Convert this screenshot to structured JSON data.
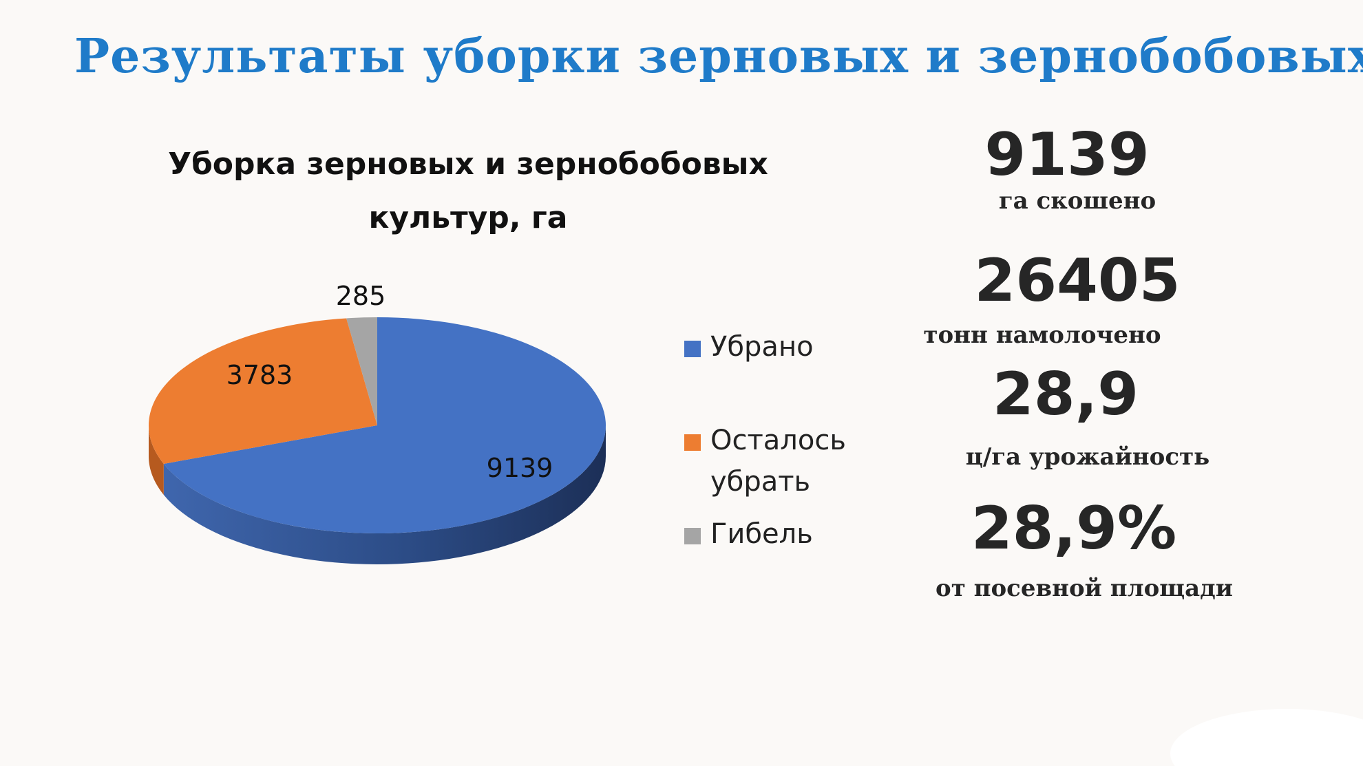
{
  "slide": {
    "title": "Результаты уборки зерновых и зернобобовых куль"
  },
  "stats": [
    {
      "value": "9139",
      "caption": "га скошено"
    },
    {
      "value": "26405",
      "caption": "тонн намолочено"
    },
    {
      "value": "28,9",
      "caption": "ц/га урожайность"
    },
    {
      "value": "28,9%",
      "caption": "от посевной площади"
    }
  ],
  "chart_data": {
    "type": "pie",
    "title_lines": [
      "Уборка зерновых и зернобобовых",
      "культур, га"
    ],
    "categories": [
      "Убрано",
      "Осталось убрать",
      "Гибель"
    ],
    "values": [
      9139,
      3783,
      285
    ],
    "data_labels": [
      "9139",
      "3783",
      "285"
    ],
    "colors": [
      "#4472c4",
      "#ed7d31",
      "#a5a5a5"
    ],
    "legend": {
      "position": "right",
      "items": [
        {
          "lines": [
            "Убрано"
          ]
        },
        {
          "lines": [
            "Осталось",
            "убрать"
          ]
        },
        {
          "lines": [
            "Гибель"
          ]
        }
      ]
    },
    "style": "3d"
  }
}
